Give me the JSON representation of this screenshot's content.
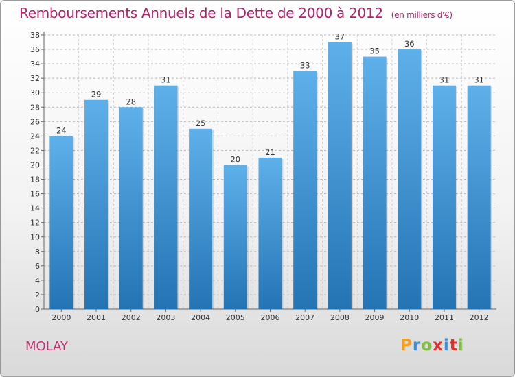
{
  "title": "Remboursements Annuels de la Dette de 2000 à 2012",
  "unit_note": "(en milliers d'€)",
  "commune": "MOLAY",
  "brand": "Proxiti",
  "brand_colors": [
    "#f0a020",
    "#3a8fd8",
    "#7cbf3a",
    "#e0302a",
    "#3a8fd8",
    "#e0302a",
    "#7cbf3a"
  ],
  "colors": {
    "title": "#b3226b",
    "bar_top": "#5eb0ea",
    "bar_bottom": "#2474b4",
    "commune": "#c2306f"
  },
  "chart_data": {
    "type": "bar",
    "categories": [
      "2000",
      "2001",
      "2002",
      "2003",
      "2004",
      "2005",
      "2006",
      "2007",
      "2008",
      "2009",
      "2010",
      "2011",
      "2012"
    ],
    "values": [
      24,
      29,
      28,
      31,
      25,
      20,
      21,
      33,
      37,
      35,
      36,
      31,
      31
    ],
    "ylim": [
      0,
      38
    ],
    "yticks": [
      0,
      2,
      4,
      6,
      8,
      10,
      12,
      14,
      16,
      18,
      20,
      22,
      24,
      26,
      28,
      30,
      32,
      34,
      36,
      38
    ],
    "grid": true,
    "data_labels": true
  }
}
